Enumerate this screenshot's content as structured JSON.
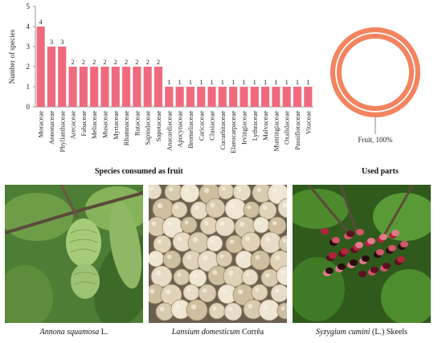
{
  "chart_data": [
    {
      "type": "bar",
      "title": "",
      "xlabel": "Species consumed as fruit",
      "ylabel": "Number of species",
      "ylim": [
        0,
        5
      ],
      "yticks": [
        0,
        1,
        2,
        3,
        4,
        5
      ],
      "grid": false,
      "bar_color": "#f06a7e",
      "categories": [
        "Moraceae",
        "Annonaceae",
        "Phyllanthaceae",
        "Arecaceae",
        "Fabaceae",
        "Meliaceae",
        "Musaceae",
        "Myrtaceae",
        "Rhamnaceae",
        "Rutaceae",
        "Sapindaceae",
        "Sapotaceae",
        "Anacardiaceae",
        "Apocynaceae",
        "Bromeliaceae",
        "Caricaceae",
        "Clusiaceae",
        "Cucurbitaceae",
        "Elaeocarpaceae",
        "Irvingiaceae",
        "Lythraceae",
        "Malvaceae",
        "Muntingiaceae",
        "Oxalidaceae",
        "Passifloraceae",
        "Vitaceae"
      ],
      "values": [
        4,
        3,
        3,
        2,
        2,
        2,
        2,
        2,
        2,
        2,
        2,
        2,
        1,
        1,
        1,
        1,
        1,
        1,
        1,
        1,
        1,
        1,
        1,
        1,
        1,
        1
      ]
    },
    {
      "type": "pie",
      "title": "Used parts",
      "labels": [
        "Fruit"
      ],
      "values": [
        100
      ],
      "data_labels": [
        "Fruit, 100%"
      ],
      "color": "#f4845f"
    }
  ],
  "photos": [
    {
      "caption_italic": "Annona squamosa",
      "caption_rest": " L."
    },
    {
      "caption_italic": "Lansium domesticum",
      "caption_rest": " Corrêa"
    },
    {
      "caption_italic": "Syzygium cumini",
      "caption_rest": " (L.) Skeels"
    }
  ]
}
